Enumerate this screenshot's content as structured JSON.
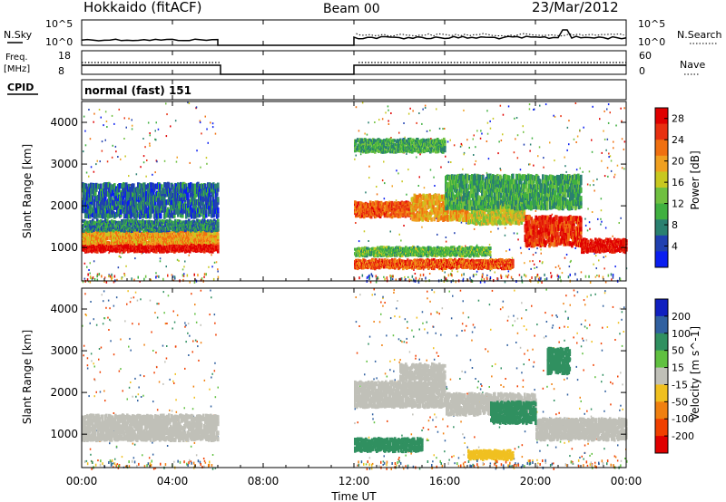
{
  "header": {
    "title": "Hokkaido (fitACF)",
    "beam": "Beam 00",
    "date": "23/Mar/2012"
  },
  "noise_panel": {
    "left_label": "N.Sky",
    "right_label": "N.Search",
    "y_ticks": [
      "10^5",
      "10^0"
    ]
  },
  "freq_panel": {
    "left_label_1": "Freq.",
    "left_label_2": "[MHz]",
    "left_ticks": [
      "18",
      "8"
    ],
    "right_label": "Nave",
    "right_ticks": [
      "60",
      "0"
    ]
  },
  "cpid_panel": {
    "label": "CPID",
    "value": "normal (fast) 151"
  },
  "chart_data": [
    {
      "type": "heatmap",
      "name": "power",
      "ylabel": "Slant Range [km]",
      "ylim": [
        200,
        4500
      ],
      "y_ticks": [
        1000,
        2000,
        3000,
        4000
      ],
      "xlim": [
        "00:00",
        "24:00"
      ],
      "colorbar": {
        "label": "Power [dB]",
        "ticks": [
          4,
          8,
          12,
          16,
          20,
          24,
          28
        ],
        "colors": [
          "#0a1ef0",
          "#2040b0",
          "#2a8070",
          "#40b040",
          "#70c040",
          "#c8c820",
          "#f0a020",
          "#f07010",
          "#e83010",
          "#e00000"
        ]
      },
      "data_gap": {
        "start": "06:00",
        "end": "12:00"
      },
      "bands": [
        {
          "t": [
            0,
            6
          ],
          "r": [
            900,
            1100
          ],
          "value": 28
        },
        {
          "t": [
            0,
            6
          ],
          "r": [
            1100,
            1400
          ],
          "value": 20
        },
        {
          "t": [
            0,
            6
          ],
          "r": [
            1400,
            1650
          ],
          "value": 8
        },
        {
          "t": [
            0,
            6
          ],
          "r": [
            1800,
            2600
          ],
          "value": 6
        },
        {
          "t": [
            12,
            14.5
          ],
          "r": [
            1750,
            2100
          ],
          "value": 24
        },
        {
          "t": [
            14.5,
            17
          ],
          "r": [
            1700,
            2300
          ],
          "value": 20
        },
        {
          "t": [
            17,
            19.5
          ],
          "r": [
            1600,
            2100
          ],
          "value": 16
        },
        {
          "t": [
            19.5,
            22
          ],
          "r": [
            1100,
            1800
          ],
          "value": 26
        },
        {
          "t": [
            22,
            24
          ],
          "r": [
            900,
            1200
          ],
          "value": 28
        },
        {
          "t": [
            12,
            19
          ],
          "r": [
            500,
            700
          ],
          "value": 24
        },
        {
          "t": [
            12,
            18
          ],
          "r": [
            800,
            1000
          ],
          "value": 12
        },
        {
          "t": [
            12,
            16
          ],
          "r": [
            3300,
            3600
          ],
          "value": 10
        },
        {
          "t": [
            16,
            22
          ],
          "r": [
            2000,
            2800
          ],
          "value": 10
        }
      ]
    },
    {
      "type": "heatmap",
      "name": "velocity",
      "ylabel": "Slant Range [km]",
      "ylim": [
        200,
        4500
      ],
      "y_ticks": [
        1000,
        2000,
        3000,
        4000
      ],
      "xlabel": "Time UT",
      "x_ticks": [
        "00:00",
        "04:00",
        "08:00",
        "12:00",
        "16:00",
        "20:00",
        "00:00"
      ],
      "colorbar": {
        "label": "Velocity [m s^-1]",
        "ticks": [
          200,
          100,
          50,
          15,
          -15,
          -50,
          -100,
          -200
        ],
        "colors": [
          "#1020c0",
          "#3060a0",
          "#309060",
          "#60c040",
          "#c0c0b8",
          "#f0c020",
          "#f08010",
          "#f04000",
          "#e00000"
        ]
      },
      "data_gap": {
        "start": "06:00",
        "end": "12:00"
      },
      "bands": [
        {
          "t": [
            0,
            6
          ],
          "r": [
            900,
            1500
          ],
          "value": 0
        },
        {
          "t": [
            12,
            16
          ],
          "r": [
            1700,
            2300
          ],
          "value": 0
        },
        {
          "t": [
            16,
            20
          ],
          "r": [
            1500,
            2000
          ],
          "value": 0
        },
        {
          "t": [
            20,
            24
          ],
          "r": [
            900,
            1400
          ],
          "value": 0
        },
        {
          "t": [
            18,
            20
          ],
          "r": [
            1300,
            1800
          ],
          "value": 60
        },
        {
          "t": [
            12,
            15
          ],
          "r": [
            600,
            900
          ],
          "value": 60
        },
        {
          "t": [
            17,
            19
          ],
          "r": [
            400,
            600
          ],
          "value": -40
        },
        {
          "t": [
            14,
            16
          ],
          "r": [
            2300,
            2700
          ],
          "value": 0
        },
        {
          "t": [
            20.5,
            21.5
          ],
          "r": [
            2500,
            3100
          ],
          "value": 60
        }
      ]
    }
  ]
}
